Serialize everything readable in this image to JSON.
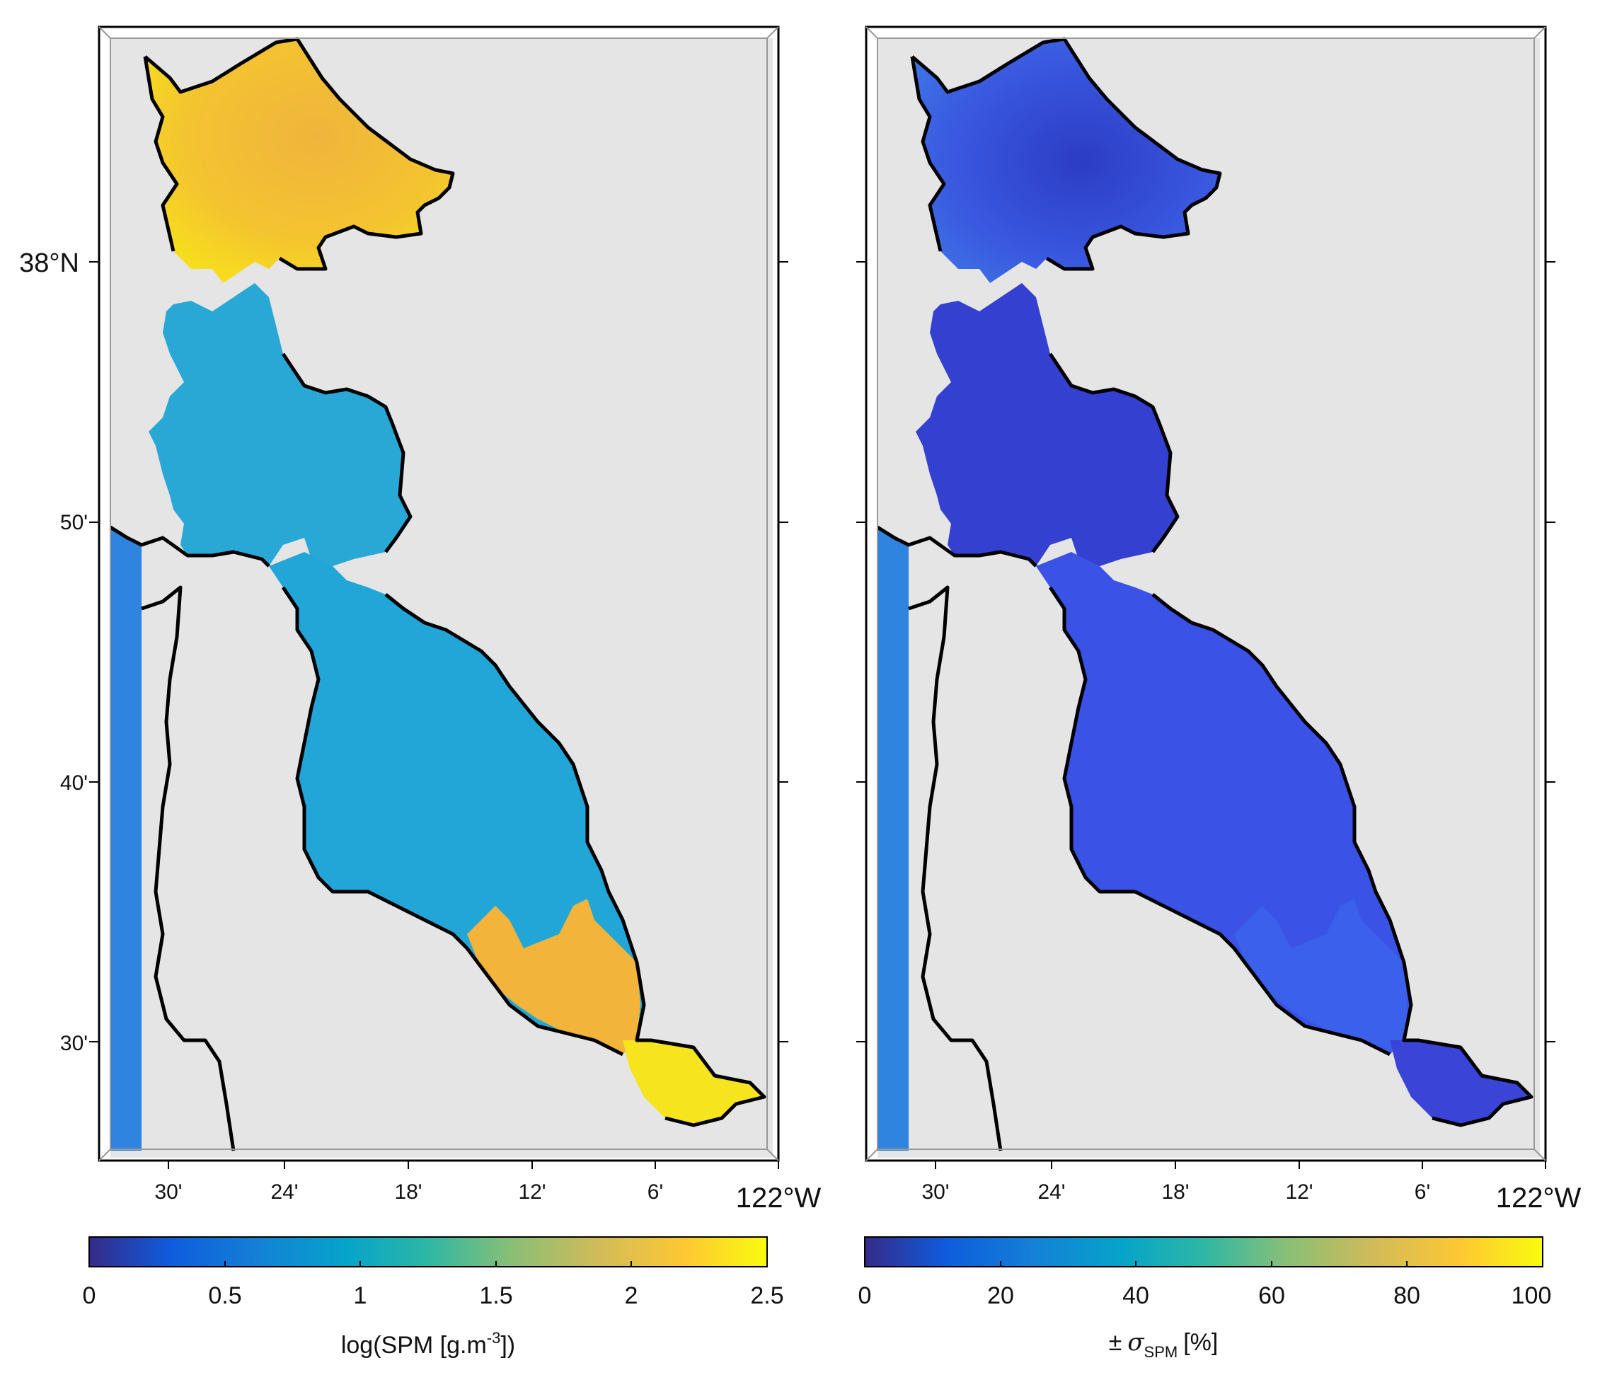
{
  "figure": {
    "panels": [
      {
        "id": "left",
        "lat_ticks": [
          "38°N",
          "50'",
          "40'",
          "30'"
        ],
        "lon_ticks": [
          "30'",
          "24'",
          "18'",
          "12'",
          "6'",
          "122°W"
        ],
        "colorbar": {
          "ticks": [
            "0",
            "0.5",
            "1",
            "1.5",
            "2",
            "2.5"
          ],
          "range": [
            0,
            2.5
          ],
          "label_main": "log(SPM [g.m",
          "label_sup": "-3",
          "label_end": "])"
        },
        "palette": {
          "north": "#f4c430",
          "mid": "#29a8d6",
          "south_bay": "#22a6d8",
          "south_edge": "#f2b43a",
          "ocean": "#2f84e0"
        }
      },
      {
        "id": "right",
        "lat_ticks": [
          "38°N",
          "50'",
          "40'",
          "30'"
        ],
        "lon_ticks": [
          "30'",
          "24'",
          "18'",
          "12'",
          "6'",
          "122°W"
        ],
        "colorbar": {
          "ticks": [
            "0",
            "20",
            "40",
            "60",
            "80",
            "100"
          ],
          "range": [
            0,
            100
          ],
          "label_pm": "±",
          "label_sigma": "σ",
          "label_sub": "SPM",
          "label_end": "[%]"
        },
        "palette": {
          "north": "#3a4fd8",
          "mid": "#3440d0",
          "south_bay": "#3a52e6",
          "south_edge": "#3a60ec",
          "ocean": "#2f84e0"
        }
      }
    ],
    "colormap": [
      "#352a87",
      "#0f5cdd",
      "#1481d6",
      "#06a4ca",
      "#2eb7a4",
      "#87bf77",
      "#d1bb59",
      "#fec832",
      "#f9fb0e"
    ],
    "land_color": "#e5e5e5"
  }
}
